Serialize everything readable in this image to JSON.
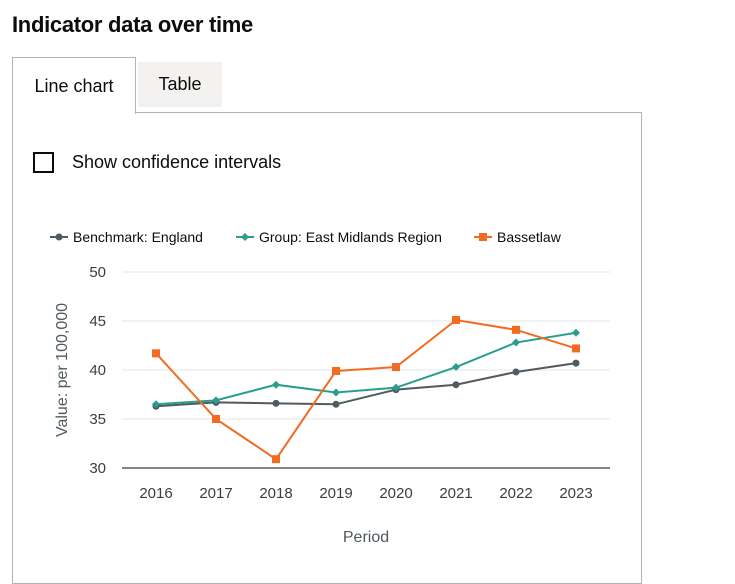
{
  "page": {
    "heading": "Indicator data over time"
  },
  "tabs": [
    {
      "label": "Line chart",
      "selected": true
    },
    {
      "label": "Table",
      "selected": false
    }
  ],
  "confidence_toggle": {
    "label": "Show confidence intervals",
    "checked": false
  },
  "colors": {
    "england": "#505a5f",
    "region": "#2a9d8f",
    "local": "#f26b21",
    "grid": "#e6e6e6"
  },
  "chart_data": {
    "type": "line",
    "xlabel": "Period",
    "ylabel": "Value: per 100,000",
    "categories": [
      "2016",
      "2017",
      "2018",
      "2019",
      "2020",
      "2021",
      "2022",
      "2023"
    ],
    "ylim": [
      30,
      50
    ],
    "yticks": [
      30,
      35,
      40,
      45,
      50
    ],
    "legend_position": "top",
    "series": [
      {
        "name": "Benchmark: England",
        "marker": "circle",
        "color": "#505a5f",
        "values": [
          36.3,
          36.7,
          36.6,
          36.5,
          38.0,
          38.5,
          39.8,
          40.7
        ]
      },
      {
        "name": "Group: East Midlands Region",
        "marker": "diamond",
        "color": "#2a9d8f",
        "values": [
          36.5,
          36.9,
          38.5,
          37.7,
          38.2,
          40.3,
          42.8,
          43.8
        ]
      },
      {
        "name": "Bassetlaw",
        "marker": "square",
        "color": "#f26b21",
        "values": [
          41.7,
          35.0,
          30.9,
          39.9,
          40.3,
          45.1,
          44.1,
          42.2
        ]
      }
    ]
  }
}
